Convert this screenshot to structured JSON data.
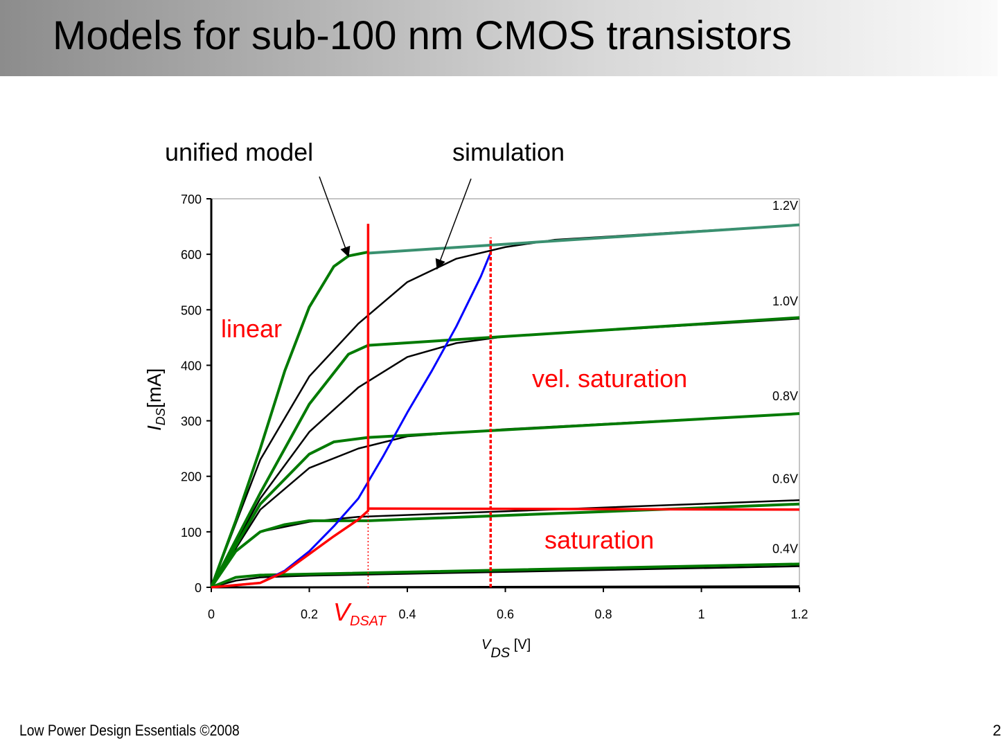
{
  "slide": {
    "title": "Models for sub-100 nm CMOS transistors",
    "footer": "Low Power Design Essentials ©2008",
    "page_number": "2"
  },
  "chart_data": {
    "type": "line",
    "xlabel": {
      "main": "V",
      "sub": "DS",
      "unit": " [V]"
    },
    "ylabel": {
      "main": "I",
      "sub": "DS",
      "unit": "[mA]"
    },
    "xlim": [
      0,
      1.2
    ],
    "ylim": [
      0,
      700
    ],
    "xticks": [
      "0",
      "0.2",
      "0.4",
      "0.6",
      "0.8",
      "1",
      "1.2"
    ],
    "yticks": [
      "0",
      "100",
      "200",
      "300",
      "400",
      "500",
      "600",
      "700"
    ],
    "annotations": {
      "unified_model": "unified model",
      "simulation": "simulation",
      "linear": "linear",
      "vel_saturation": "vel. saturation",
      "saturation": "saturation",
      "vdsat_main": "V",
      "vdsat_sub": "DSAT"
    },
    "curve_labels": [
      {
        "text": "1.2V",
        "y": 680
      },
      {
        "text": "1.0V",
        "y": 508
      },
      {
        "text": "0.8V",
        "y": 337
      },
      {
        "text": "0.6V",
        "y": 188
      },
      {
        "text": "0.4V",
        "y": 62
      }
    ],
    "colors": {
      "model": "#007a00",
      "simulation": "#000000",
      "blue": "#0000ff",
      "red": "#ff0000",
      "top_model_sat": "#3a9070"
    },
    "series": [
      {
        "group": "simulation",
        "vgs": "1.2V",
        "points": [
          [
            0,
            0
          ],
          [
            0.1,
            230
          ],
          [
            0.2,
            380
          ],
          [
            0.3,
            475
          ],
          [
            0.4,
            550
          ],
          [
            0.5,
            592
          ],
          [
            0.6,
            613
          ],
          [
            0.7,
            626
          ],
          [
            1.2,
            653
          ]
        ]
      },
      {
        "group": "simulation",
        "vgs": "1.0V",
        "points": [
          [
            0,
            0
          ],
          [
            0.1,
            160
          ],
          [
            0.2,
            280
          ],
          [
            0.3,
            360
          ],
          [
            0.4,
            415
          ],
          [
            0.5,
            440
          ],
          [
            0.6,
            452
          ],
          [
            1.2,
            484
          ]
        ]
      },
      {
        "group": "simulation",
        "vgs": "0.8V",
        "points": [
          [
            0,
            0
          ],
          [
            0.1,
            140
          ],
          [
            0.2,
            215
          ],
          [
            0.3,
            250
          ],
          [
            0.4,
            272
          ],
          [
            0.6,
            285
          ],
          [
            1.2,
            313
          ]
        ]
      },
      {
        "group": "simulation",
        "vgs": "0.6V",
        "points": [
          [
            0,
            0
          ],
          [
            0.05,
            65
          ],
          [
            0.1,
            100
          ],
          [
            0.2,
            118
          ],
          [
            0.3,
            127
          ],
          [
            0.6,
            137
          ],
          [
            1.2,
            157
          ]
        ]
      },
      {
        "group": "simulation",
        "vgs": "0.4V",
        "points": [
          [
            0,
            0
          ],
          [
            0.05,
            12
          ],
          [
            0.1,
            18
          ],
          [
            0.2,
            21
          ],
          [
            1.2,
            38
          ]
        ]
      },
      {
        "group": "simulation",
        "vgs": "low",
        "points": [
          [
            0,
            0
          ],
          [
            1.2,
            2
          ]
        ]
      },
      {
        "group": "model",
        "vgs": "1.2V",
        "points": [
          [
            0,
            0
          ],
          [
            0.05,
            120
          ],
          [
            0.1,
            250
          ],
          [
            0.15,
            390
          ],
          [
            0.2,
            505
          ],
          [
            0.25,
            578
          ],
          [
            0.28,
            597
          ],
          [
            0.32,
            604
          ]
        ]
      },
      {
        "group": "model_sat",
        "vgs": "1.2V",
        "points": [
          [
            0.32,
            602
          ],
          [
            1.2,
            653
          ]
        ]
      },
      {
        "group": "model",
        "vgs": "1.0V",
        "points": [
          [
            0,
            0
          ],
          [
            0.1,
            170
          ],
          [
            0.2,
            330
          ],
          [
            0.28,
            420
          ],
          [
            0.32,
            436
          ],
          [
            1.2,
            486
          ]
        ]
      },
      {
        "group": "model",
        "vgs": "0.8V",
        "points": [
          [
            0,
            0
          ],
          [
            0.1,
            150
          ],
          [
            0.2,
            240
          ],
          [
            0.25,
            262
          ],
          [
            0.32,
            270
          ],
          [
            1.2,
            313
          ]
        ]
      },
      {
        "group": "model",
        "vgs": "0.6V",
        "points": [
          [
            0,
            0
          ],
          [
            0.05,
            65
          ],
          [
            0.1,
            100
          ],
          [
            0.15,
            113
          ],
          [
            0.2,
            120
          ],
          [
            0.32,
            120
          ],
          [
            1.2,
            150
          ]
        ]
      },
      {
        "group": "model",
        "vgs": "0.4V",
        "points": [
          [
            0,
            0
          ],
          [
            0.05,
            18
          ],
          [
            0.1,
            22
          ],
          [
            1.2,
            42
          ]
        ]
      },
      {
        "group": "vdsat_locus",
        "points": [
          [
            0,
            0
          ],
          [
            0.1,
            8
          ],
          [
            0.15,
            30
          ],
          [
            0.2,
            65
          ],
          [
            0.25,
            110
          ],
          [
            0.3,
            160
          ],
          [
            0.35,
            235
          ],
          [
            0.4,
            315
          ],
          [
            0.45,
            390
          ],
          [
            0.5,
            470
          ],
          [
            0.55,
            560
          ],
          [
            0.57,
            603
          ]
        ]
      },
      {
        "group": "saturation_model",
        "points": [
          [
            0,
            0
          ],
          [
            0.1,
            8
          ],
          [
            0.15,
            28
          ],
          [
            0.2,
            60
          ],
          [
            0.25,
            92
          ],
          [
            0.3,
            122
          ],
          [
            0.32,
            138
          ],
          [
            0.32,
            142
          ],
          [
            1.2,
            140
          ]
        ]
      },
      {
        "group": "vdsat_line",
        "points": [
          [
            0.32,
            142
          ],
          [
            0.32,
            655
          ]
        ]
      }
    ],
    "vlines": [
      {
        "x": 0.32,
        "from": 0,
        "to": 138,
        "style": "dotted"
      },
      {
        "x": 0.57,
        "from": 0,
        "to": 630,
        "style": "dashed"
      }
    ]
  }
}
